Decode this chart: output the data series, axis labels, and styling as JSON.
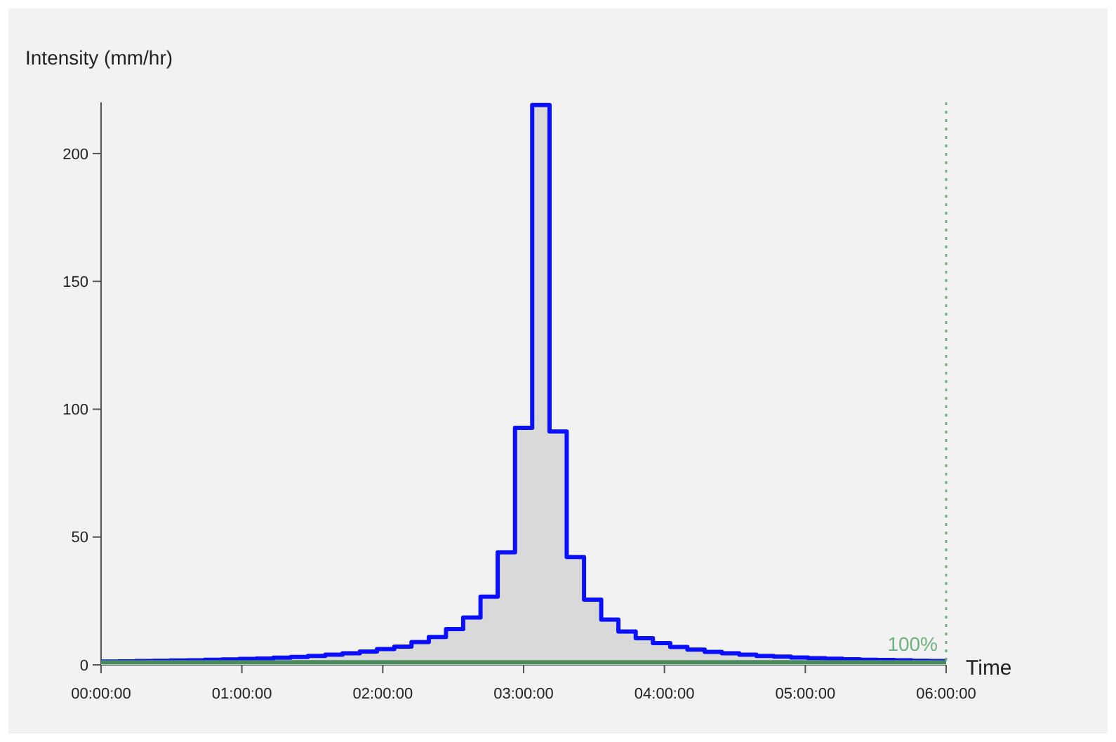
{
  "chart_data": {
    "type": "step",
    "xlabel": "Time",
    "ylabel": "Intensity (mm/hr)",
    "xlim": [
      0,
      6
    ],
    "ylim": [
      0,
      220
    ],
    "xticks": [
      {
        "value": 0,
        "label": "00:00:00"
      },
      {
        "value": 1,
        "label": "01:00:00"
      },
      {
        "value": 2,
        "label": "02:00:00"
      },
      {
        "value": 3,
        "label": "03:00:00"
      },
      {
        "value": 4,
        "label": "04:00:00"
      },
      {
        "value": 5,
        "label": "05:00:00"
      },
      {
        "value": 6,
        "label": "06:00:00"
      }
    ],
    "yticks": [
      0,
      50,
      100,
      150,
      200
    ],
    "grid": false,
    "marker": "none",
    "annotations": [
      "100%"
    ],
    "series": [
      {
        "type": "area",
        "color": "#d9d9d9",
        "x": [
          0,
          0.122,
          0.245,
          0.367,
          0.49,
          0.612,
          0.735,
          0.857,
          0.98,
          1.102,
          1.224,
          1.347,
          1.469,
          1.592,
          1.714,
          1.837,
          1.959,
          2.082,
          2.204,
          2.327,
          2.449,
          2.571,
          2.694,
          2.816,
          2.939,
          3.061,
          3.184,
          3.306,
          3.429,
          3.551,
          3.673,
          3.796,
          3.918,
          4.041,
          4.163,
          4.286,
          4.408,
          4.531,
          4.653,
          4.776,
          4.898,
          5.02,
          5.143,
          5.265,
          5.388,
          5.51,
          5.633,
          5.755,
          5.878,
          6
        ],
        "values": [
          1.3,
          1.4,
          1.5,
          1.6,
          1.7,
          1.8,
          2.0,
          2.1,
          2.3,
          2.5,
          2.8,
          3.1,
          3.5,
          4.0,
          4.5,
          5.2,
          6.2,
          7.1,
          8.9,
          10.9,
          14,
          18.5,
          26.7,
          44,
          92.7,
          219,
          91.3,
          42.2,
          25.5,
          17.7,
          13,
          10.4,
          8.5,
          7,
          6,
          5.1,
          4.5,
          4,
          3.5,
          3.2,
          2.9,
          2.6,
          2.4,
          2.2,
          2.0,
          1.9,
          1.8,
          1.6,
          1.5,
          1.5
        ]
      },
      {
        "type": "step",
        "color": "#0a10ff",
        "x": [
          0,
          0.122,
          0.245,
          0.367,
          0.49,
          0.612,
          0.735,
          0.857,
          0.98,
          1.102,
          1.224,
          1.347,
          1.469,
          1.592,
          1.714,
          1.837,
          1.959,
          2.082,
          2.204,
          2.327,
          2.449,
          2.571,
          2.694,
          2.816,
          2.939,
          3.061,
          3.184,
          3.306,
          3.429,
          3.551,
          3.673,
          3.796,
          3.918,
          4.041,
          4.163,
          4.286,
          4.408,
          4.531,
          4.653,
          4.776,
          4.898,
          5.02,
          5.143,
          5.265,
          5.388,
          5.51,
          5.633,
          5.755,
          5.878,
          6
        ],
        "values": [
          1.3,
          1.4,
          1.5,
          1.6,
          1.7,
          1.8,
          2.0,
          2.1,
          2.3,
          2.5,
          2.8,
          3.1,
          3.5,
          4.0,
          4.5,
          5.2,
          6.2,
          7.1,
          8.9,
          10.9,
          14,
          18.5,
          26.7,
          44,
          92.7,
          219,
          91.3,
          42.2,
          25.5,
          17.7,
          13,
          10.4,
          8.5,
          7,
          6,
          5.1,
          4.5,
          4,
          3.5,
          3.2,
          2.9,
          2.6,
          2.4,
          2.2,
          2.0,
          1.9,
          1.8,
          1.6,
          1.5,
          1.5
        ]
      },
      {
        "type": "line",
        "color": "#4a8a5c",
        "x": [
          0,
          1,
          2,
          3,
          4,
          5,
          6
        ],
        "values": [
          1,
          1,
          1,
          1,
          1,
          1,
          1
        ]
      }
    ],
    "ref_lines": [
      {
        "axis": "x",
        "value": 6,
        "color": "#6fb07f",
        "line_style": "dotted"
      }
    ]
  }
}
